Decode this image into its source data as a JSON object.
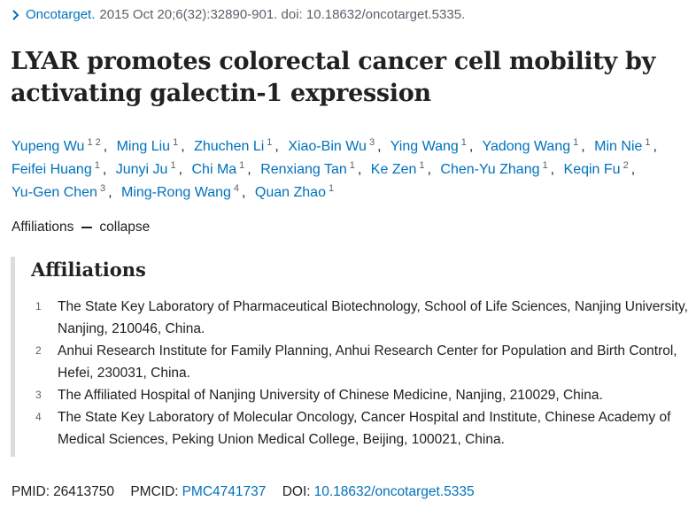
{
  "citation": {
    "journal": "Oncotarget.",
    "details": "2015 Oct 20;6(32):32890-901. doi: 10.18632/oncotarget.5335."
  },
  "title": "LYAR promotes colorectal cancer cell mobility by activating galectin-1 expression",
  "authors": {
    "separator": ",",
    "list": [
      {
        "name": "Yupeng Wu",
        "affiliations": [
          "1",
          "2"
        ]
      },
      {
        "name": "Ming Liu",
        "affiliations": [
          "1"
        ]
      },
      {
        "name": "Zhuchen Li",
        "affiliations": [
          "1"
        ]
      },
      {
        "name": "Xiao-Bin Wu",
        "affiliations": [
          "3"
        ]
      },
      {
        "name": "Ying Wang",
        "affiliations": [
          "1"
        ]
      },
      {
        "name": "Yadong Wang",
        "affiliations": [
          "1"
        ]
      },
      {
        "name": "Min Nie",
        "affiliations": [
          "1"
        ]
      },
      {
        "name": "Feifei Huang",
        "affiliations": [
          "1"
        ]
      },
      {
        "name": "Junyi Ju",
        "affiliations": [
          "1"
        ]
      },
      {
        "name": "Chi Ma",
        "affiliations": [
          "1"
        ]
      },
      {
        "name": "Renxiang Tan",
        "affiliations": [
          "1"
        ]
      },
      {
        "name": "Ke Zen",
        "affiliations": [
          "1"
        ]
      },
      {
        "name": "Chen-Yu Zhang",
        "affiliations": [
          "1"
        ]
      },
      {
        "name": "Keqin Fu",
        "affiliations": [
          "2"
        ]
      },
      {
        "name": "Yu-Gen Chen",
        "affiliations": [
          "3"
        ]
      },
      {
        "name": "Ming-Rong Wang",
        "affiliations": [
          "4"
        ]
      },
      {
        "name": "Quan Zhao",
        "affiliations": [
          "1"
        ]
      }
    ]
  },
  "affiliations_toggle": {
    "label": "Affiliations",
    "action": "collapse"
  },
  "affiliations": {
    "heading": "Affiliations",
    "items": [
      {
        "number": "1",
        "text": "The State Key Laboratory of Pharmaceutical Biotechnology, School of Life Sciences, Nanjing University, Nanjing, 210046, China."
      },
      {
        "number": "2",
        "text": "Anhui Research Institute for Family Planning, Anhui Research Center for Population and Birth Control, Hefei, 230031, China."
      },
      {
        "number": "3",
        "text": "The Affiliated Hospital of Nanjing University of Chinese Medicine, Nanjing, 210029, China."
      },
      {
        "number": "4",
        "text": "The State Key Laboratory of Molecular Oncology, Cancer Hospital and Institute, Chinese Academy of Medical Sciences, Peking Union Medical College, Beijing, 100021, China."
      }
    ]
  },
  "identifiers": {
    "pmid_label": "PMID:",
    "pmid": "26413750",
    "pmcid_label": "PMCID:",
    "pmcid": "PMC4741737",
    "doi_label": "DOI:",
    "doi": "10.18632/oncotarget.5335"
  }
}
